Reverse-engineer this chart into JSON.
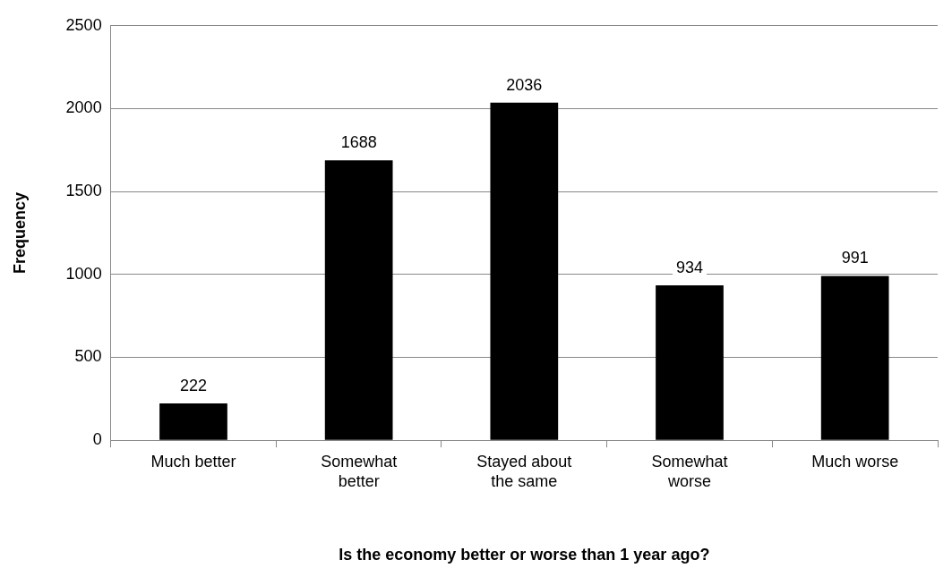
{
  "chart_data": {
    "type": "bar",
    "xlabel": "Is the economy better or worse than 1 year ago?",
    "ylabel": "Frequency",
    "categories": [
      "Much better",
      "Somewhat better",
      "Stayed about the same",
      "Somewhat worse",
      "Much worse"
    ],
    "values": [
      222,
      1688,
      2036,
      934,
      991
    ],
    "color": "#000000",
    "ylim": [
      0,
      2500
    ],
    "yticks": [
      0,
      500,
      1000,
      1500,
      2000,
      2500
    ],
    "grid": "y",
    "legend": false,
    "data_labels": true
  }
}
